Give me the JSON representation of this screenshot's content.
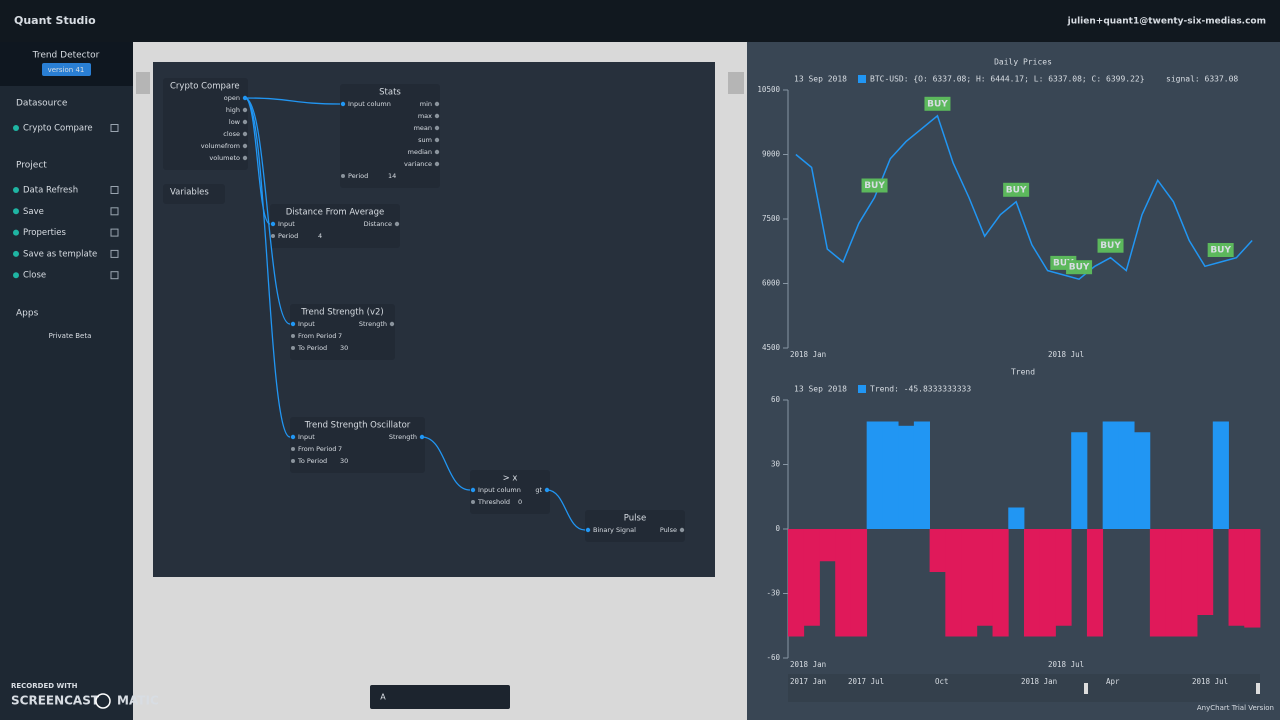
{
  "header": {
    "app": "Quant Studio",
    "user": "julien+quant1@twenty-six-medias.com"
  },
  "sidebar": {
    "project": "Trend Detector",
    "version": "version 41",
    "sections": [
      {
        "title": "Datasource",
        "items": [
          "Crypto Compare"
        ]
      },
      {
        "title": "Project",
        "items": [
          "Data Refresh",
          "Save",
          "Properties",
          "Save as template",
          "Close"
        ]
      },
      {
        "title": "Apps",
        "items": [
          "Private Beta"
        ]
      }
    ]
  },
  "nodes": [
    {
      "title": "Crypto Compare",
      "inputs": [],
      "outputs": [
        "open",
        "high",
        "low",
        "close",
        "volumefrom",
        "volumeto"
      ],
      "params": []
    },
    {
      "title": "Stats",
      "inputs": [
        "Input column"
      ],
      "outputs": [
        "min",
        "max",
        "mean",
        "sum",
        "median",
        "variance"
      ],
      "params": [
        {
          "name": "Period",
          "value": "14"
        }
      ]
    },
    {
      "title": "Variables",
      "inputs": [],
      "outputs": [],
      "params": []
    },
    {
      "title": "Distance From Average",
      "inputs": [
        "Input"
      ],
      "outputs": [
        "Distance"
      ],
      "params": [
        {
          "name": "Period",
          "value": "4"
        }
      ]
    },
    {
      "title": "Trend Strength (v2)",
      "inputs": [
        "Input"
      ],
      "outputs": [
        "Strength"
      ],
      "params": [
        {
          "name": "From Period",
          "value": "7"
        },
        {
          "name": "To Period",
          "value": "30"
        }
      ]
    },
    {
      "title": "Trend Strength Oscillator",
      "inputs": [
        "Input"
      ],
      "outputs": [
        "Strength"
      ],
      "params": [
        {
          "name": "From Period",
          "value": "7"
        },
        {
          "name": "To Period",
          "value": "30"
        }
      ]
    },
    {
      "title": "> x",
      "inputs": [
        "Input column"
      ],
      "outputs": [
        "gt"
      ],
      "params": [
        {
          "name": "Threshold",
          "value": "0"
        }
      ]
    },
    {
      "title": "Pulse",
      "inputs": [
        "Binary Signal"
      ],
      "outputs": [
        "Pulse"
      ],
      "params": []
    }
  ],
  "toolbar": {
    "text_tool": "A"
  },
  "watermark": {
    "line1": "RECORDED WITH",
    "brand1": "SCREENCAST",
    "brand2": "MATIC"
  },
  "price_chart": {
    "type": "line",
    "title": "Daily Prices",
    "date": "13 Sep 2018",
    "legend": "BTC-USD: {O: 6337.08; H: 6444.17; L: 6337.08; C: 6399.22}",
    "signal_legend": "signal: 6337.08",
    "series": [
      {
        "name": "BTC-USD",
        "color": "#2196f3",
        "values": [
          9000,
          8700,
          6800,
          6500,
          7400,
          8000,
          8900,
          9300,
          9600,
          9900,
          8800,
          8000,
          7100,
          7600,
          7900,
          6900,
          6300,
          6200,
          6100,
          6400,
          6600,
          6300,
          7600,
          8400,
          7900,
          7000,
          6400,
          6500,
          6600,
          7000
        ]
      }
    ],
    "signal": {
      "label": "BUY",
      "color": "#5cb85c",
      "values": [
        null,
        null,
        null,
        null,
        null,
        8000,
        null,
        null,
        null,
        9900,
        null,
        null,
        null,
        null,
        7900,
        null,
        null,
        6200,
        6100,
        null,
        6600,
        null,
        null,
        null,
        null,
        null,
        null,
        6500,
        null,
        null
      ]
    },
    "ylim": [
      4500,
      10500
    ],
    "yticks": [
      10500,
      9000,
      7500,
      6000,
      4500
    ],
    "xlabels": [
      "2018 Jan",
      "2018 Jul"
    ]
  },
  "trend_chart": {
    "type": "bar",
    "title": "Trend",
    "date": "13 Sep 2018",
    "legend": "Trend: -45.8333333333",
    "positive_color": "#2196f3",
    "negative_color": "#e0195a",
    "values": [
      -50,
      -45,
      -15,
      -50,
      -50,
      50,
      50,
      48,
      50,
      -20,
      -50,
      -50,
      -45,
      -50,
      10,
      -50,
      -50,
      -45,
      45,
      -50,
      50,
      50,
      45,
      -50,
      -50,
      -50,
      -40,
      50,
      -45,
      -45.8333333333
    ],
    "ylim": [
      -60,
      60
    ],
    "yticks": [
      60,
      30,
      0,
      -30,
      -60
    ],
    "xlabels": [
      "2018 Jan",
      "2018 Jul"
    ]
  },
  "scroller": {
    "labels": [
      "2017 Jan",
      "2017 Jul",
      "Oct",
      "2018 Jan",
      "Apr",
      "2018 Jul"
    ]
  },
  "credit": "AnyChart Trial Version"
}
